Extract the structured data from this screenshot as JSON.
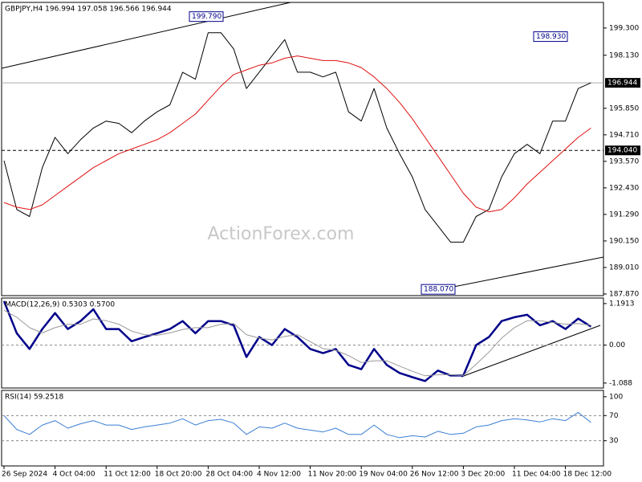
{
  "chart_data": [
    {
      "type": "line",
      "title": "GBPJPY,H4  196.994 197.058 196.566 196.944",
      "watermark": "ActionForex.com",
      "categories": [
        "26 Sep 2024",
        null,
        null,
        null,
        "4 Oct 04:00",
        null,
        null,
        null,
        "11 Oct 12:00",
        null,
        null,
        null,
        "18 Oct 20:00",
        null,
        null,
        null,
        "28 Oct 04:00",
        null,
        null,
        null,
        "4 Nov 12:00",
        null,
        null,
        null,
        "11 Nov 20:00",
        null,
        null,
        null,
        "19 Nov 04:00",
        null,
        null,
        null,
        "26 Nov 12:00",
        null,
        null,
        null,
        "3 Dec 20:00",
        null,
        null,
        null,
        "11 Dec 04:00",
        null,
        null,
        null,
        "18 Dec 12:00",
        null,
        null
      ],
      "series": [
        {
          "color": "#000000",
          "width": 1,
          "values": [
            193.6,
            191.5,
            191.2,
            193.3,
            194.6,
            193.9,
            194.5,
            195.0,
            195.3,
            195.2,
            194.8,
            195.3,
            195.7,
            196.0,
            197.4,
            197.1,
            199.1,
            199.1,
            198.4,
            196.7,
            197.4,
            198.1,
            198.8,
            197.4,
            197.4,
            197.2,
            197.4,
            195.7,
            195.3,
            196.7,
            195.0,
            193.9,
            192.9,
            191.5,
            190.8,
            190.1,
            190.1,
            191.2,
            191.5,
            192.9,
            193.9,
            194.3,
            193.9,
            195.3,
            195.3,
            196.7,
            196.944
          ]
        },
        {
          "color": "#e01010",
          "width": 1,
          "values": [
            191.8,
            191.6,
            191.5,
            191.7,
            192.1,
            192.5,
            192.9,
            193.3,
            193.6,
            193.9,
            194.1,
            194.3,
            194.5,
            194.8,
            195.2,
            195.6,
            196.2,
            196.8,
            197.3,
            197.5,
            197.7,
            197.8,
            198.0,
            198.1,
            198.0,
            197.9,
            197.9,
            197.8,
            197.6,
            197.2,
            196.7,
            196.1,
            195.4,
            194.6,
            193.8,
            193.0,
            192.2,
            191.6,
            191.4,
            191.5,
            192.0,
            192.6,
            193.1,
            193.6,
            194.1,
            194.6,
            195.0
          ]
        }
      ],
      "ylim": [
        187.8,
        200.4
      ],
      "yticks": [
        {
          "value": 199.3,
          "label": "199.300"
        },
        {
          "value": 198.13,
          "label": "198.130"
        },
        {
          "value": 195.85,
          "label": "195.850"
        },
        {
          "value": 194.71,
          "label": "194.710"
        },
        {
          "value": 193.57,
          "label": "193.570"
        },
        {
          "value": 192.43,
          "label": "192.430"
        },
        {
          "value": 191.29,
          "label": "191.290"
        },
        {
          "value": 190.15,
          "label": "190.150"
        },
        {
          "value": 189.01,
          "label": "189.010"
        },
        {
          "value": 187.87,
          "label": "187.870"
        }
      ],
      "last_price": 196.944,
      "level": {
        "value": 194.04,
        "label": "194.040"
      },
      "annotations": [
        {
          "value": 199.79,
          "label": "199.790"
        },
        {
          "value": 198.93,
          "label": "198.930"
        },
        {
          "value": 188.07,
          "label": "188.070"
        }
      ]
    },
    {
      "type": "line",
      "title": "MACD(12,26,9) 0.5303 0.5700",
      "series": [
        {
          "color": "#00008b",
          "width": 2.5,
          "values": [
            1.26,
            0.34,
            -0.11,
            0.46,
            0.92,
            0.46,
            0.69,
            1.03,
            0.46,
            0.46,
            0.11,
            0.23,
            0.34,
            0.46,
            0.69,
            0.34,
            0.69,
            0.69,
            0.57,
            -0.34,
            0.23,
            0,
            0.46,
            0.23,
            -0.11,
            -0.23,
            -0.11,
            -0.57,
            -0.69,
            -0.11,
            -0.57,
            -0.8,
            -0.92,
            -1.03,
            -0.73,
            -0.87,
            -0.87,
            0,
            0.23,
            0.69,
            0.8,
            0.87,
            0.57,
            0.69,
            0.46,
            0.76,
            0.53
          ]
        },
        {
          "color": "#999999",
          "width": 1,
          "values": [
            1.0,
            0.8,
            0.5,
            0.35,
            0.5,
            0.6,
            0.6,
            0.75,
            0.7,
            0.6,
            0.4,
            0.3,
            0.28,
            0.35,
            0.45,
            0.5,
            0.5,
            0.6,
            0.62,
            0.3,
            0.2,
            0.15,
            0.25,
            0.3,
            0.1,
            -0.1,
            -0.15,
            -0.3,
            -0.5,
            -0.45,
            -0.45,
            -0.6,
            -0.75,
            -0.88,
            -0.85,
            -0.85,
            -0.87,
            -0.55,
            -0.2,
            0.2,
            0.5,
            0.7,
            0.7,
            0.65,
            0.6,
            0.62,
            0.57
          ]
        }
      ],
      "ylim": [
        -1.23,
        1.35
      ],
      "yticks": [
        1.1913,
        {
          "value": 0,
          "label": "0.00"
        },
        -1.088
      ],
      "levels": [
        0
      ]
    },
    {
      "type": "line",
      "title": "RSI(14) 59.2518",
      "series": [
        {
          "color": "#3b7fd4",
          "width": 1,
          "values": [
            70,
            48,
            40,
            55,
            62,
            50,
            57,
            62,
            55,
            55,
            48,
            52,
            55,
            58,
            65,
            55,
            62,
            64,
            58,
            40,
            52,
            50,
            58,
            50,
            47,
            44,
            50,
            40,
            40,
            55,
            40,
            35,
            38,
            36,
            45,
            40,
            42,
            52,
            55,
            62,
            65,
            63,
            60,
            65,
            62,
            75,
            59.2518
          ]
        }
      ],
      "ylim": [
        -10,
        110
      ],
      "yticks": [
        100,
        70,
        30
      ],
      "levels": [
        70,
        30
      ]
    }
  ]
}
